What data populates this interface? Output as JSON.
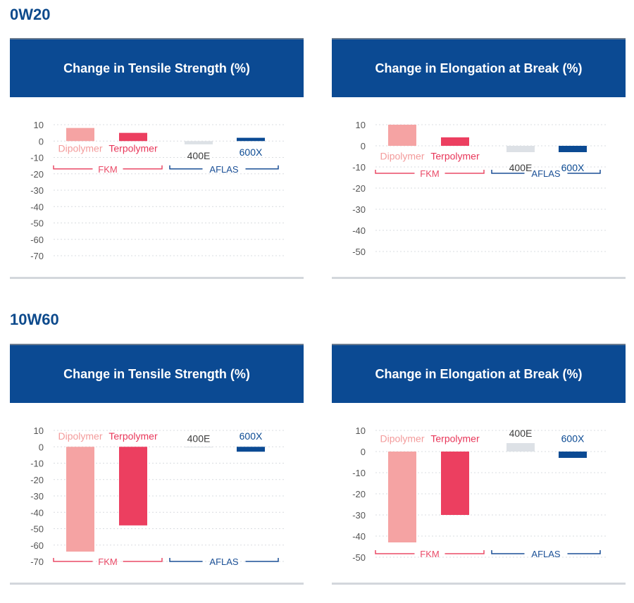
{
  "sections": [
    {
      "title": "0W20",
      "charts": [
        {
          "type": "bar",
          "title": "Change in Tensile Strength (%)",
          "categories": [
            "Dipolymer",
            "Terpolymer",
            "400E",
            "600X"
          ],
          "values": [
            8,
            5,
            -2,
            2
          ],
          "yticks": [
            10,
            0,
            -10,
            -20,
            -30,
            -40,
            -50,
            -60,
            -70
          ],
          "ylim": [
            -70,
            10
          ],
          "groups": [
            {
              "label": "FKM"
            },
            {
              "label": "AFLAS"
            }
          ]
        },
        {
          "type": "bar",
          "title": "Change in Elongation at Break (%)",
          "categories": [
            "Dipolymer",
            "Terpolymer",
            "400E",
            "600X"
          ],
          "values": [
            10,
            4,
            -3,
            -3
          ],
          "yticks": [
            10,
            0,
            -10,
            -20,
            -30,
            -40,
            -50
          ],
          "ylim": [
            -50,
            10
          ],
          "groups": [
            {
              "label": "FKM"
            },
            {
              "label": "AFLAS"
            }
          ]
        }
      ]
    },
    {
      "title": "10W60",
      "charts": [
        {
          "type": "bar",
          "title": "Change in Tensile Strength (%)",
          "categories": [
            "Dipolymer",
            "Terpolymer",
            "400E",
            "600X"
          ],
          "values": [
            -64,
            -48,
            0,
            -3
          ],
          "yticks": [
            10,
            0,
            -10,
            -20,
            -30,
            -40,
            -50,
            -60,
            -70
          ],
          "ylim": [
            -70,
            10
          ],
          "groups": [
            {
              "label": "FKM"
            },
            {
              "label": "AFLAS"
            }
          ]
        },
        {
          "type": "bar",
          "title": "Change in Elongation at Break (%)",
          "categories": [
            "Dipolymer",
            "Terpolymer",
            "400E",
            "600X"
          ],
          "values": [
            -43,
            -30,
            4,
            -3
          ],
          "yticks": [
            10,
            0,
            -10,
            -20,
            -30,
            -40,
            -50
          ],
          "ylim": [
            -50,
            10
          ],
          "groups": [
            {
              "label": "FKM"
            },
            {
              "label": "AFLAS"
            }
          ]
        }
      ]
    }
  ],
  "colors": {
    "header_bg": "#0b4a93",
    "section_title": "#0d4a8c",
    "series": [
      "#f5a3a3",
      "#ec3f60",
      "#dde1e6",
      "#0b4a93"
    ],
    "label_colors": [
      "#f39b9b",
      "#e8375a",
      "#3d3d3d",
      "#0b4a93"
    ],
    "fkm_bracket": "#ea4a67",
    "aflas_bracket": "#1a4f96",
    "axis_text": "#555555",
    "grid": "#d9dce0"
  }
}
